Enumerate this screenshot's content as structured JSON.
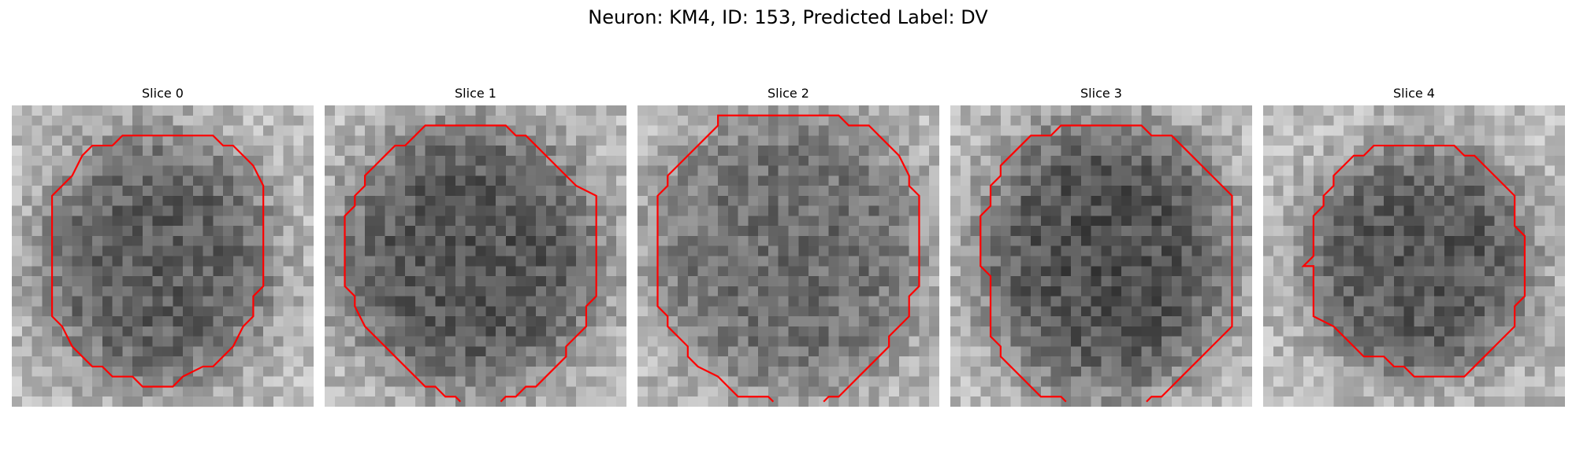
{
  "figure": {
    "suptitle": "Neuron: KM4, ID: 153, Predicted Label: DV",
    "outline_color": "#ff0000",
    "colormap": "gray",
    "grid_size": 30,
    "panels": [
      {
        "title": "Slice 0"
      },
      {
        "title": "Slice 1"
      },
      {
        "title": "Slice 2"
      },
      {
        "title": "Slice 3"
      },
      {
        "title": "Slice 4"
      }
    ]
  }
}
